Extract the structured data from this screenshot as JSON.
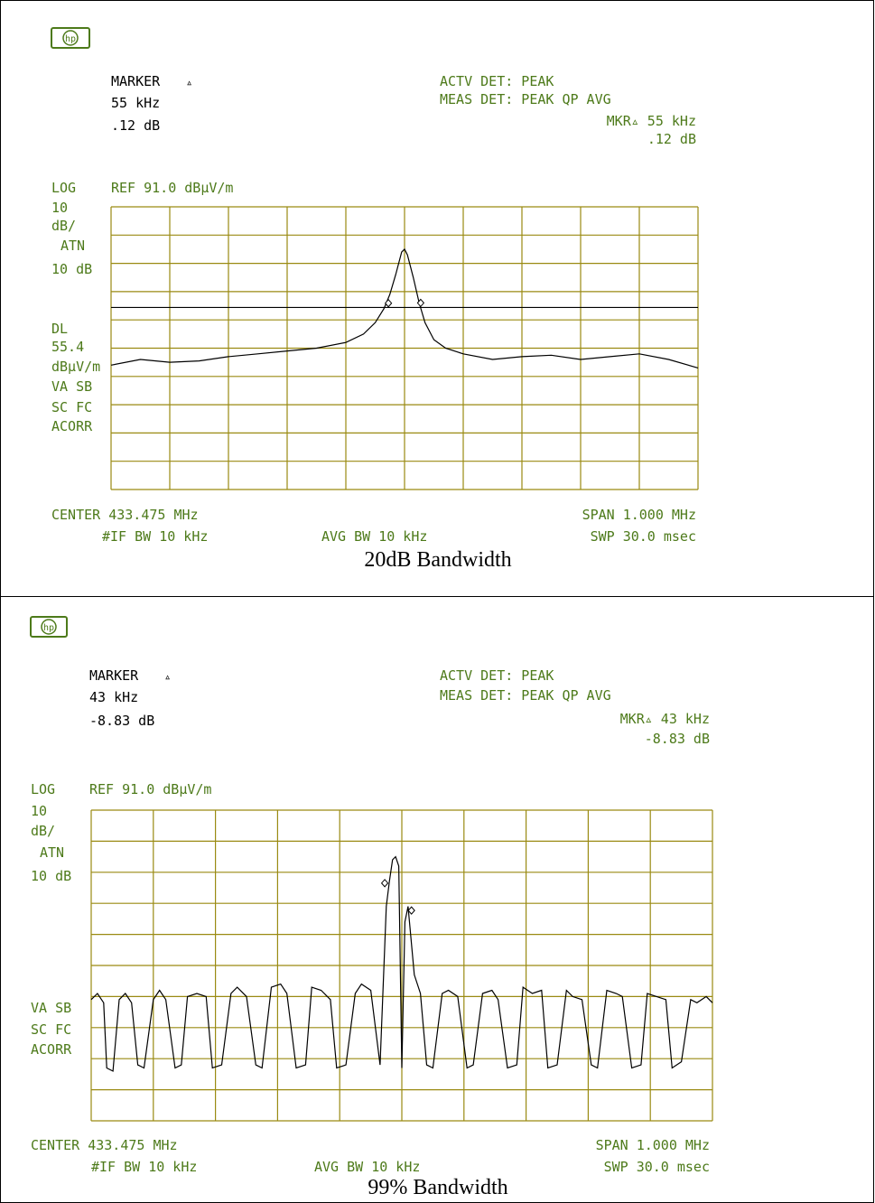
{
  "colors": {
    "grid": "#9a8a12",
    "text_green": "#4d7a1a",
    "trace": "#000000"
  },
  "panels": [
    {
      "id": "top",
      "logo_icon": "hp-logo-icon",
      "marker": {
        "title": "MARKER",
        "symbol": "▵",
        "freq": "55 kHz",
        "level": ".12 dB"
      },
      "det": {
        "actv": "ACTV DET: PEAK",
        "meas": "MEAS DET: PEAK QP AVG"
      },
      "mkr": {
        "label": "MKR▵ 55 kHz",
        "level": ".12 dB"
      },
      "left_labels": [
        "LOG",
        "10",
        "dB/",
        "ATN",
        "10 dB",
        "DL",
        "55.4",
        "dBµV/m",
        "VA SB",
        "SC FC",
        "ACORR"
      ],
      "ref": "REF 91.0 dBµV/m",
      "footer": {
        "center": "CENTER 433.475 MHz",
        "span": "SPAN 1.000 MHz",
        "if_bw": "#IF BW 10 kHz",
        "avg_bw": "AVG BW 10 kHz",
        "swp": "SWP 30.0 msec"
      },
      "caption": "20dB Bandwidth"
    },
    {
      "id": "bottom",
      "logo_icon": "hp-logo-icon",
      "marker": {
        "title": "MARKER",
        "symbol": "▵",
        "freq": "43 kHz",
        "level": "-8.83 dB"
      },
      "det": {
        "actv": "ACTV DET: PEAK",
        "meas": "MEAS DET: PEAK QP AVG"
      },
      "mkr": {
        "label": "MKR▵ 43 kHz",
        "level": "-8.83 dB"
      },
      "left_labels": [
        "LOG",
        "10",
        "dB/",
        "ATN",
        "10 dB",
        "VA SB",
        "SC FC",
        "ACORR"
      ],
      "ref": "REF 91.0 dBµV/m",
      "footer": {
        "center": "CENTER 433.475 MHz",
        "span": "SPAN 1.000 MHz",
        "if_bw": "#IF BW 10 kHz",
        "avg_bw": "AVG BW 10 kHz",
        "swp": "SWP 30.0 msec"
      },
      "caption": "99% Bandwidth"
    }
  ],
  "chart_data": [
    {
      "type": "line",
      "title": "20dB Bandwidth",
      "xlabel": "CENTER 433.475 MHz / SPAN 1.000 MHz",
      "ylabel": "LOG 10 dB/",
      "x_unit": "MHz",
      "y_unit": "dBµV/m",
      "xlim": [
        432.975,
        433.975
      ],
      "ylim": [
        -9.0,
        91.0
      ],
      "grid": true,
      "display_line": 55.4,
      "markers": [
        {
          "x": 433.4475,
          "y": 56.9
        },
        {
          "x": 433.5025,
          "y": 57.0
        }
      ],
      "series": [
        {
          "x": [
            432.975,
            433.025,
            433.075,
            433.125,
            433.175,
            433.225,
            433.275,
            433.325,
            433.375,
            433.405,
            433.425,
            433.44,
            433.45,
            433.46,
            433.47,
            433.475,
            433.48,
            433.49,
            433.5,
            433.51,
            433.525,
            433.545,
            433.575,
            433.625,
            433.675,
            433.725,
            433.775,
            433.825,
            433.875,
            433.925,
            433.975
          ],
          "y": [
            35.0,
            37.0,
            36.0,
            36.5,
            38.0,
            39.0,
            40.0,
            41.0,
            43.0,
            46.0,
            50.0,
            55.0,
            60.0,
            67.0,
            75.0,
            76.0,
            74.0,
            66.0,
            57.0,
            50.0,
            44.0,
            41.0,
            39.0,
            37.0,
            38.0,
            38.5,
            37.0,
            38.0,
            39.0,
            37.0,
            34.0
          ]
        }
      ]
    },
    {
      "type": "line",
      "title": "99% Bandwidth",
      "xlabel": "CENTER 433.475 MHz / SPAN 1.000 MHz",
      "ylabel": "LOG 10 dB/",
      "x_unit": "MHz",
      "y_unit": "dBµV/m",
      "xlim": [
        432.975,
        433.975
      ],
      "ylim": [
        -9.0,
        91.0
      ],
      "grid": true,
      "markers": [
        {
          "x": 433.4475,
          "y": 67.5
        },
        {
          "x": 433.4905,
          "y": 58.7
        }
      ],
      "series": [
        {
          "x": [
            432.975,
            432.985,
            432.995,
            433.0,
            433.01,
            433.02,
            433.03,
            433.04,
            433.05,
            433.06,
            433.075,
            433.085,
            433.095,
            433.11,
            433.12,
            433.13,
            433.145,
            433.16,
            433.17,
            433.185,
            433.2,
            433.21,
            433.225,
            433.24,
            433.25,
            433.265,
            433.28,
            433.29,
            433.305,
            433.32,
            433.33,
            433.345,
            433.36,
            433.37,
            433.385,
            433.4,
            433.41,
            433.425,
            433.44,
            433.45,
            433.455,
            433.46,
            433.465,
            433.47,
            433.475,
            433.48,
            433.485,
            433.495,
            433.505,
            433.515,
            433.525,
            433.54,
            433.55,
            433.565,
            433.58,
            433.59,
            433.605,
            433.62,
            433.63,
            433.645,
            433.66,
            433.67,
            433.685,
            433.7,
            433.71,
            433.725,
            433.74,
            433.75,
            433.765,
            433.78,
            433.79,
            433.805,
            433.82,
            433.83,
            433.845,
            433.86,
            433.87,
            433.885,
            433.9,
            433.91,
            433.925,
            433.94,
            433.95,
            433.965,
            433.975
          ],
          "y": [
            30.0,
            32.0,
            29.0,
            8.0,
            7.0,
            30.0,
            32.0,
            29.0,
            9.0,
            8.0,
            30.0,
            33.0,
            30.0,
            8.0,
            9.0,
            31.0,
            32.0,
            31.0,
            8.0,
            9.0,
            32.0,
            34.0,
            31.0,
            9.0,
            8.0,
            34.0,
            35.0,
            32.0,
            8.0,
            9.0,
            34.0,
            33.0,
            30.0,
            8.0,
            9.0,
            32.0,
            35.0,
            33.0,
            9.0,
            60.0,
            68.0,
            75.0,
            76.0,
            73.0,
            8.0,
            55.0,
            60.0,
            38.0,
            32.0,
            9.0,
            8.0,
            32.0,
            33.0,
            31.0,
            8.0,
            9.0,
            32.0,
            33.0,
            30.0,
            8.0,
            9.0,
            34.0,
            32.0,
            33.0,
            8.0,
            9.0,
            33.0,
            31.0,
            30.0,
            9.0,
            8.0,
            33.0,
            32.0,
            31.0,
            8.0,
            9.0,
            32.0,
            31.0,
            30.0,
            8.0,
            10.0,
            30.0,
            29.0,
            31.0,
            29.0
          ]
        }
      ]
    }
  ]
}
